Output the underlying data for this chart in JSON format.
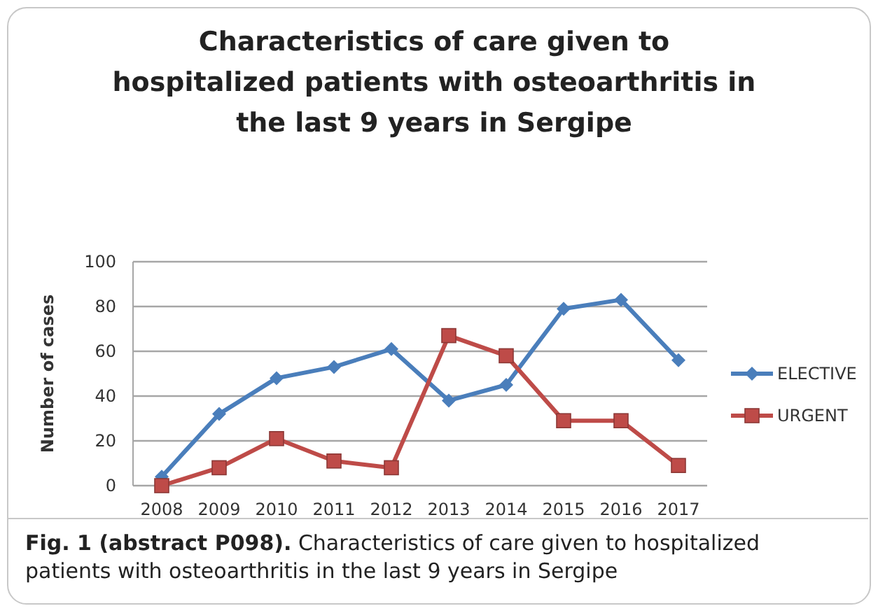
{
  "chart_data": {
    "type": "line",
    "title": "Characteristics  of care given to hospitalized patients with osteoarthritis in the last 9 years in Sergipe",
    "ylabel": "Number of cases",
    "categories": [
      "2008",
      "2009",
      "2010",
      "2011",
      "2012",
      "2013",
      "2014",
      "2015",
      "2016",
      "2017"
    ],
    "series": [
      {
        "name": "ELECTIVE",
        "color": "#4a7ebb",
        "marker": "diamond",
        "values": [
          4,
          32,
          48,
          53,
          61,
          38,
          45,
          79,
          83,
          56
        ]
      },
      {
        "name": "URGENT",
        "color": "#be4b48",
        "marker": "square",
        "values": [
          0,
          8,
          21,
          11,
          8,
          67,
          58,
          29,
          29,
          9
        ]
      }
    ],
    "ylim": [
      0,
      100
    ],
    "yticks": [
      0,
      20,
      40,
      60,
      80,
      100
    ],
    "grid": "y",
    "legend": "right",
    "line_style": "solid",
    "annotations": [
      "Fig. 1 (abstract P098).",
      "Characteristics of care given to hospitalized patients with osteoarthritis in the last 9 years in Sergipe"
    ]
  }
}
